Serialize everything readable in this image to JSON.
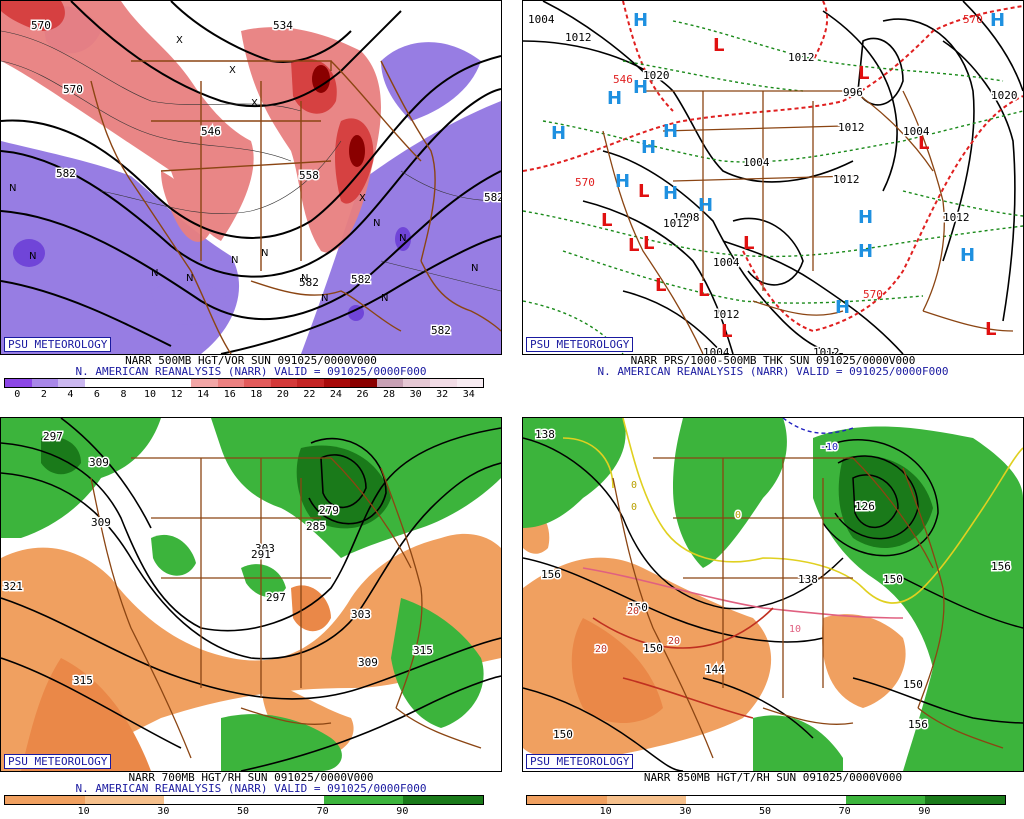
{
  "panels": [
    {
      "logo": "PSU METEOROLOGY",
      "title": "NARR 500MB HGT/VOR SUN 091025/0000V000",
      "subtitle": "N. AMERICAN REANALYSIS (NARR) VALID = 091025/0000F000",
      "scale_labels": [
        "0",
        "2",
        "4",
        "6",
        "8",
        "10",
        "12",
        "14",
        "16",
        "18",
        "20",
        "22",
        "24",
        "26",
        "28",
        "30",
        "32",
        "34"
      ],
      "scale_colors": [
        "#8c46e6",
        "#a887e8",
        "#cbb8f0",
        "#ffffff",
        "#ffffff",
        "#ffffff",
        "#ffffff",
        "#f2a6a6",
        "#ec8080",
        "#e25a5a",
        "#d43a3a",
        "#c42424",
        "#a80a0a",
        "#8a0000",
        "#c8a0b4",
        "#e6c8d4",
        "#f2dce6",
        "#f8ecf2"
      ],
      "contour_labels": [
        "570",
        "582",
        "534",
        "546",
        "558",
        "582",
        "570",
        "582",
        "582",
        "582"
      ],
      "markers": [
        "N",
        "N",
        "N",
        "N",
        "N",
        "N",
        "N",
        "N",
        "N",
        "N",
        "N",
        "N",
        "X",
        "X",
        "X",
        "X"
      ]
    },
    {
      "logo": "PSU METEOROLOGY",
      "title": "NARR PRS/1000-500MB THK SUN 091025/0000V000",
      "subtitle": "N. AMERICAN REANALYSIS (NARR) VALID = 091025/0000F000",
      "pressure_labels": [
        "1004",
        "1012",
        "1020",
        "1012",
        "1004",
        "1012",
        "1012",
        "1004",
        "1012",
        "1012",
        "1008",
        "1004",
        "1012",
        "1020",
        "996",
        "1004",
        "1012"
      ],
      "thickness_labels": [
        "570",
        "570",
        "570",
        "546"
      ],
      "highs": [
        "H",
        "H",
        "H",
        "H",
        "H",
        "H",
        "H",
        "H",
        "H",
        "H",
        "H",
        "H",
        "H",
        "H"
      ],
      "lows": [
        "L",
        "L",
        "L",
        "L",
        "L",
        "L",
        "L",
        "L",
        "L",
        "L",
        "L",
        "L"
      ]
    },
    {
      "logo": "PSU METEOROLOGY",
      "title": "NARR 700MB HGT/RH SUN 091025/0000V000",
      "subtitle": "N. AMERICAN REANALYSIS (NARR) VALID = 091025/0000F000",
      "scale_labels": [
        "10",
        "30",
        "50",
        "70",
        "90"
      ],
      "contour_labels": [
        "297",
        "309",
        "309",
        "321",
        "315",
        "303",
        "291",
        "297",
        "279",
        "285",
        "303",
        "309",
        "315"
      ]
    },
    {
      "logo": "PSU METEOROLOGY",
      "title": "NARR 850MB HGT/T/RH SUN 091025/0000V000",
      "scale_labels": [
        "10",
        "30",
        "50",
        "70",
        "90"
      ],
      "height_labels": [
        "138",
        "156",
        "150",
        "150",
        "144",
        "156",
        "150",
        "150",
        "156",
        "150",
        "126",
        "138"
      ],
      "temp_labels": [
        "-10",
        "0",
        "0",
        "0",
        "10",
        "20",
        "20",
        "20"
      ]
    }
  ]
}
